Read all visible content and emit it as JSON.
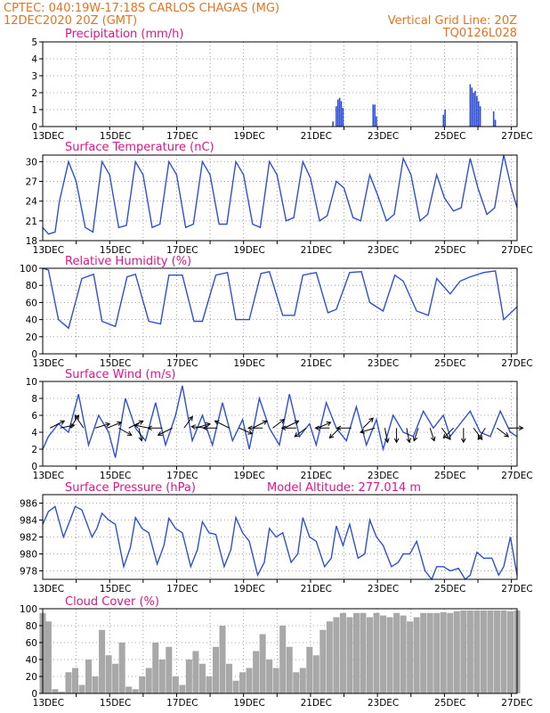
{
  "header": {
    "left_line1": "CPTEC:   040:19W-17:18S   CARLOS CHAGAS (MG)",
    "left_line2": "12DEC2020 20Z (GMT)",
    "right_line1": "Vertical Grid Line: 20Z",
    "right_line2": "TQ0126L028"
  },
  "colors": {
    "header": "#e8731c",
    "title": "#e0148c",
    "line": "#2f4fd6",
    "cloud": "#a8a8a8",
    "arrow": "#000000"
  },
  "chart_data": [
    {
      "type": "bar",
      "title": "Precipitation (mm/h)",
      "x_labels": [
        "13DEC",
        "15DEC",
        "17DEC",
        "19DEC",
        "21DEC",
        "23DEC",
        "25DEC",
        "27DEC"
      ],
      "ylim": [
        0,
        5
      ],
      "yticks": [
        0,
        1,
        2,
        3,
        4,
        5
      ],
      "grid": true,
      "x_days": [
        21.5,
        21.6,
        21.65,
        21.7,
        21.75,
        21.8,
        22.7,
        22.75,
        22.8,
        24.8,
        24.85,
        25.6,
        25.65,
        25.7,
        25.75,
        25.8,
        25.85,
        25.9,
        26.3,
        26.35
      ],
      "values": [
        0.3,
        1.2,
        1.6,
        1.7,
        1.5,
        1.1,
        1.3,
        1.3,
        0.6,
        0.7,
        1.0,
        2.5,
        2.3,
        2.0,
        2.1,
        1.8,
        1.5,
        1.2,
        0.9,
        0.4
      ]
    },
    {
      "type": "line",
      "title": "Surface Temperature (nC)",
      "x_labels": [
        "13DEC",
        "15DEC",
        "17DEC",
        "19DEC",
        "21DEC",
        "23DEC",
        "25DEC",
        "27DEC"
      ],
      "ylim": [
        18,
        31
      ],
      "yticks": [
        18,
        21,
        24,
        27,
        30
      ],
      "grid": true,
      "x_days": [
        12.83,
        13.0,
        13.2,
        13.33,
        13.6,
        13.83,
        14.1,
        14.33,
        14.6,
        14.83,
        15.1,
        15.33,
        15.6,
        15.83,
        16.1,
        16.33,
        16.6,
        16.83,
        17.1,
        17.33,
        17.6,
        17.83,
        18.1,
        18.33,
        18.6,
        18.83,
        19.1,
        19.33,
        19.6,
        19.83,
        20.1,
        20.33,
        20.6,
        20.83,
        21.1,
        21.33,
        21.6,
        21.83,
        22.1,
        22.33,
        22.6,
        22.83,
        23.1,
        23.33,
        23.6,
        23.83,
        24.1,
        24.33,
        24.6,
        24.83,
        25.1,
        25.33,
        25.6,
        25.83,
        26.1,
        26.33,
        26.6,
        26.83,
        27.0
      ],
      "values": [
        20.0,
        19.0,
        19.3,
        24.0,
        30.0,
        27.0,
        20.0,
        19.3,
        30.0,
        28.0,
        20.0,
        20.3,
        30.0,
        28.0,
        20.0,
        20.5,
        30.0,
        28.0,
        20.0,
        20.5,
        30.0,
        28.0,
        20.5,
        20.5,
        30.0,
        28.0,
        20.5,
        20.0,
        30.0,
        28.0,
        21.0,
        21.5,
        30.0,
        27.5,
        21.0,
        21.8,
        27.0,
        26.0,
        21.5,
        21.0,
        28.0,
        25.0,
        21.0,
        22.0,
        30.5,
        28.0,
        21.0,
        22.0,
        28.0,
        24.5,
        22.5,
        23.0,
        30.5,
        26.0,
        22.0,
        23.0,
        31.0,
        26.0,
        23.0
      ]
    },
    {
      "type": "line",
      "title": "Relative Humidity (%)",
      "x_labels": [
        "13DEC",
        "15DEC",
        "17DEC",
        "19DEC",
        "21DEC",
        "23DEC",
        "25DEC",
        "27DEC"
      ],
      "ylim": [
        0,
        100
      ],
      "yticks": [
        0,
        20,
        40,
        60,
        80,
        100
      ],
      "grid": true,
      "x_days": [
        12.83,
        13.0,
        13.3,
        13.6,
        14.0,
        14.35,
        14.6,
        15.0,
        15.35,
        15.6,
        16.0,
        16.35,
        16.6,
        17.0,
        17.35,
        17.6,
        18.0,
        18.35,
        18.6,
        19.0,
        19.35,
        19.6,
        20.0,
        20.35,
        20.6,
        21.0,
        21.35,
        21.6,
        22.0,
        22.35,
        22.6,
        23.0,
        23.35,
        23.6,
        24.0,
        24.35,
        24.6,
        25.0,
        25.3,
        25.6,
        26.0,
        26.35,
        26.6,
        27.0
      ],
      "values": [
        100,
        98,
        40,
        30,
        88,
        93,
        38,
        32,
        90,
        93,
        38,
        35,
        92,
        92,
        38,
        38,
        92,
        95,
        40,
        40,
        94,
        96,
        45,
        45,
        92,
        95,
        48,
        52,
        95,
        96,
        60,
        50,
        92,
        85,
        50,
        45,
        88,
        70,
        85,
        90,
        95,
        97,
        40,
        55
      ]
    },
    {
      "type": "line",
      "title": "Surface Wind (m/s)",
      "x_labels": [
        "13DEC",
        "15DEC",
        "17DEC",
        "19DEC",
        "21DEC",
        "23DEC",
        "25DEC",
        "27DEC"
      ],
      "ylim": [
        0,
        10
      ],
      "yticks": [
        0,
        2,
        4,
        6,
        8,
        10
      ],
      "grid": true,
      "x_days": [
        12.83,
        13.0,
        13.3,
        13.6,
        13.9,
        14.2,
        14.5,
        14.8,
        15.0,
        15.3,
        15.6,
        15.9,
        16.2,
        16.5,
        16.8,
        17.0,
        17.3,
        17.6,
        17.9,
        18.2,
        18.5,
        18.8,
        19.0,
        19.3,
        19.6,
        19.9,
        20.2,
        20.5,
        20.8,
        21.0,
        21.3,
        21.6,
        21.9,
        22.2,
        22.5,
        22.8,
        23.0,
        23.3,
        23.6,
        23.9,
        24.2,
        24.5,
        24.8,
        25.0,
        25.3,
        25.6,
        25.9,
        26.2,
        26.5,
        26.8,
        27.0
      ],
      "values": [
        2.0,
        3.5,
        5.0,
        4.0,
        8.5,
        2.5,
        6.0,
        4.0,
        1.0,
        8.0,
        4.5,
        3.0,
        7.5,
        2.5,
        6.0,
        9.5,
        3.0,
        6.0,
        2.5,
        7.5,
        3.0,
        5.5,
        2.0,
        8.0,
        4.5,
        2.5,
        8.5,
        3.5,
        5.0,
        2.5,
        7.5,
        4.5,
        3.0,
        7.0,
        2.5,
        5.5,
        2.0,
        6.0,
        4.0,
        3.5,
        6.5,
        4.5,
        6.0,
        3.5,
        5.0,
        6.5,
        4.0,
        3.5,
        6.5,
        4.0,
        3.5
      ],
      "wind_arrows": [
        {
          "day": 13.05,
          "u": 1.0,
          "v": 0.5
        },
        {
          "day": 13.35,
          "u": 1.0,
          "v": 0.2
        },
        {
          "day": 13.65,
          "u": 0.6,
          "v": 0.9
        },
        {
          "day": 14.05,
          "u": -0.6,
          "v": 0.9
        },
        {
          "day": 14.4,
          "u": 1.0,
          "v": 0.3
        },
        {
          "day": 14.75,
          "u": 1.0,
          "v": 0.4
        },
        {
          "day": 15.1,
          "u": 0.9,
          "v": -0.5
        },
        {
          "day": 15.4,
          "u": 1.0,
          "v": 0.5
        },
        {
          "day": 15.7,
          "u": 0.2,
          "v": -0.9
        },
        {
          "day": 16.0,
          "u": -1.0,
          "v": 0.2
        },
        {
          "day": 16.4,
          "u": -1.0,
          "v": 0.0
        },
        {
          "day": 16.7,
          "u": -1.0,
          "v": -0.5
        },
        {
          "day": 17.05,
          "u": 0.6,
          "v": 0.8
        },
        {
          "day": 17.4,
          "u": 1.0,
          "v": 0.3
        },
        {
          "day": 17.7,
          "u": -1.0,
          "v": 0.1
        },
        {
          "day": 18.05,
          "u": -1.0,
          "v": 0.0
        },
        {
          "day": 18.4,
          "u": -1.0,
          "v": 0.5
        },
        {
          "day": 18.7,
          "u": 0.9,
          "v": -0.4
        },
        {
          "day": 19.1,
          "u": 1.0,
          "v": 0.5
        },
        {
          "day": 19.4,
          "u": -1.0,
          "v": 0.0
        },
        {
          "day": 19.7,
          "u": 0.8,
          "v": 0.6
        },
        {
          "day": 20.05,
          "u": 1.0,
          "v": 0.5
        },
        {
          "day": 20.4,
          "u": -1.0,
          "v": 0.0
        },
        {
          "day": 20.7,
          "u": -0.8,
          "v": -0.6
        },
        {
          "day": 21.05,
          "u": 0.9,
          "v": 0.4
        },
        {
          "day": 21.4,
          "u": -1.0,
          "v": 0.0
        },
        {
          "day": 21.7,
          "u": -0.7,
          "v": -0.7
        },
        {
          "day": 22.05,
          "u": -1.0,
          "v": 0.0
        },
        {
          "day": 22.4,
          "u": 0.7,
          "v": 0.7
        },
        {
          "day": 22.75,
          "u": -1.0,
          "v": -0.3
        },
        {
          "day": 23.05,
          "u": 0.2,
          "v": -1.0
        },
        {
          "day": 23.4,
          "u": 0.0,
          "v": -1.0
        },
        {
          "day": 23.7,
          "u": 0.2,
          "v": -1.0
        },
        {
          "day": 24.05,
          "u": -0.3,
          "v": -0.9
        },
        {
          "day": 24.4,
          "u": 0.3,
          "v": -0.9
        },
        {
          "day": 24.75,
          "u": 0.6,
          "v": -0.8
        },
        {
          "day": 25.1,
          "u": -0.7,
          "v": -0.7
        },
        {
          "day": 25.4,
          "u": 0.0,
          "v": -1.0
        },
        {
          "day": 25.7,
          "u": 0.6,
          "v": -0.8
        },
        {
          "day": 26.05,
          "u": -0.5,
          "v": -0.8
        },
        {
          "day": 26.4,
          "u": 0.8,
          "v": -0.6
        },
        {
          "day": 26.75,
          "u": 1.0,
          "v": 0.0
        }
      ]
    },
    {
      "type": "line",
      "title": "Surface Pressure (hPa)",
      "annotation": "Model Altitude: 277.014 m",
      "x_labels": [
        "13DEC",
        "15DEC",
        "17DEC",
        "19DEC",
        "21DEC",
        "23DEC",
        "25DEC",
        "27DEC"
      ],
      "ylim": [
        977,
        987
      ],
      "yticks": [
        978,
        980,
        982,
        984,
        986
      ],
      "grid": true,
      "x_days": [
        12.83,
        13.0,
        13.2,
        13.45,
        13.6,
        13.8,
        14.0,
        14.3,
        14.45,
        14.6,
        14.8,
        15.0,
        15.25,
        15.45,
        15.6,
        15.8,
        16.0,
        16.25,
        16.45,
        16.6,
        16.8,
        17.0,
        17.25,
        17.45,
        17.6,
        17.8,
        18.0,
        18.25,
        18.45,
        18.6,
        18.8,
        19.0,
        19.25,
        19.45,
        19.6,
        19.8,
        20.0,
        20.25,
        20.45,
        20.6,
        20.8,
        21.0,
        21.25,
        21.45,
        21.6,
        21.8,
        22.0,
        22.25,
        22.45,
        22.6,
        22.8,
        23.0,
        23.25,
        23.45,
        23.6,
        23.8,
        24.0,
        24.25,
        24.45,
        24.6,
        24.8,
        25.0,
        25.25,
        25.45,
        25.6,
        25.8,
        26.0,
        26.25,
        26.45,
        26.6,
        26.8,
        27.0
      ],
      "values": [
        983.5,
        985.0,
        985.6,
        982.0,
        983.5,
        985.6,
        985.2,
        982.0,
        983.0,
        984.8,
        984.0,
        983.5,
        978.5,
        980.8,
        984.3,
        983.0,
        982.5,
        978.8,
        981.0,
        984.2,
        983.0,
        982.5,
        978.5,
        980.5,
        983.8,
        982.5,
        982.3,
        978.5,
        980.5,
        984.3,
        982.5,
        981.5,
        977.5,
        979.0,
        983.0,
        982.0,
        982.5,
        979.0,
        980.0,
        984.3,
        982.0,
        981.5,
        978.5,
        979.5,
        983.3,
        981.0,
        983.5,
        979.5,
        980.0,
        984.0,
        982.0,
        981.0,
        978.5,
        979.0,
        980.0,
        980.0,
        981.5,
        978.0,
        977.0,
        978.5,
        978.5,
        978.0,
        978.3,
        976.5,
        977.5,
        980.2,
        979.5,
        979.5,
        977.5,
        978.5,
        982.0,
        977.5
      ]
    },
    {
      "type": "bar",
      "title": "Cloud Cover (%)",
      "x_labels": [
        "13DEC",
        "15DEC",
        "17DEC",
        "19DEC",
        "21DEC",
        "23DEC",
        "25DEC",
        "27DEC"
      ],
      "ylim": [
        0,
        100
      ],
      "yticks": [
        0,
        20,
        40,
        60,
        80,
        100
      ],
      "grid": true,
      "x_days": [
        12.83,
        13.0,
        13.2,
        13.4,
        13.6,
        13.8,
        14.0,
        14.2,
        14.4,
        14.6,
        14.8,
        15.0,
        15.2,
        15.4,
        15.6,
        15.8,
        16.0,
        16.2,
        16.4,
        16.6,
        16.8,
        17.0,
        17.2,
        17.4,
        17.6,
        17.8,
        18.0,
        18.2,
        18.4,
        18.6,
        18.8,
        19.0,
        19.2,
        19.4,
        19.6,
        19.8,
        20.0,
        20.2,
        20.4,
        20.6,
        20.8,
        21.0,
        21.2,
        21.4,
        21.6,
        21.8,
        22.0,
        22.2,
        22.4,
        22.6,
        22.8,
        23.0,
        23.2,
        23.4,
        23.6,
        23.8,
        24.0,
        24.2,
        24.4,
        24.6,
        24.8,
        25.0,
        25.2,
        25.4,
        25.6,
        25.8,
        26.0,
        26.2,
        26.4,
        26.6,
        26.8,
        27.0
      ],
      "values": [
        95,
        85,
        5,
        2,
        25,
        30,
        10,
        40,
        20,
        75,
        45,
        35,
        60,
        8,
        5,
        20,
        30,
        60,
        40,
        55,
        20,
        10,
        40,
        50,
        35,
        20,
        55,
        80,
        35,
        15,
        25,
        30,
        50,
        70,
        40,
        30,
        80,
        55,
        25,
        30,
        55,
        45,
        75,
        85,
        90,
        95,
        90,
        95,
        95,
        90,
        95,
        92,
        90,
        95,
        92,
        85,
        90,
        95,
        95,
        95,
        96,
        95,
        97,
        98,
        98,
        98,
        98,
        98,
        98,
        98,
        97,
        98
      ]
    }
  ]
}
